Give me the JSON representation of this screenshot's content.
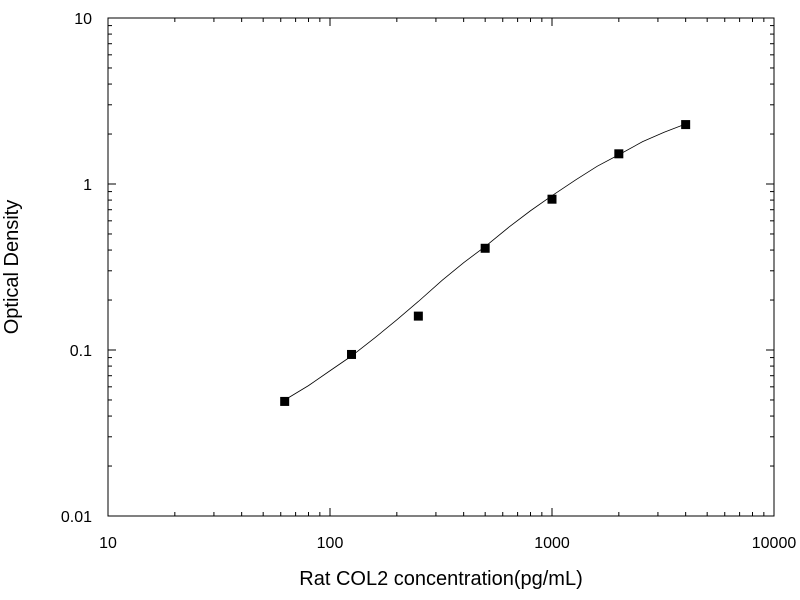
{
  "chart_data": {
    "type": "scatter",
    "xlabel": "Rat COL2 concentration(pg/mL)",
    "ylabel": "Optical Density",
    "xscale": "log",
    "yscale": "log",
    "xlim": [
      10,
      10000
    ],
    "ylim": [
      0.01,
      10
    ],
    "x_ticks": [
      10,
      100,
      1000,
      10000
    ],
    "x_tick_labels": [
      "10",
      "100",
      "1000",
      "10000"
    ],
    "y_ticks": [
      0.01,
      0.1,
      1,
      10
    ],
    "y_tick_labels": [
      "0.01",
      "0.1",
      "1",
      "10"
    ],
    "grid": false,
    "legend": "none",
    "series": [
      {
        "marker": "square",
        "color": "#000000",
        "x": [
          62.5,
          125,
          250,
          500,
          1000,
          2000,
          4000
        ],
        "y": [
          0.049,
          0.094,
          0.16,
          0.41,
          0.81,
          1.52,
          2.28
        ]
      }
    ],
    "fit_curve": {
      "kind": "four-parameter logistic",
      "color": "#000000",
      "x": [
        62.5,
        80,
        100,
        125,
        160,
        200,
        250,
        320,
        400,
        500,
        640,
        800,
        1000,
        1280,
        1600,
        2000,
        2560,
        3200,
        4000
      ],
      "y": [
        0.05,
        0.061,
        0.075,
        0.092,
        0.119,
        0.152,
        0.196,
        0.263,
        0.336,
        0.42,
        0.55,
        0.69,
        0.85,
        1.06,
        1.28,
        1.5,
        1.8,
        2.05,
        2.3
      ]
    }
  }
}
